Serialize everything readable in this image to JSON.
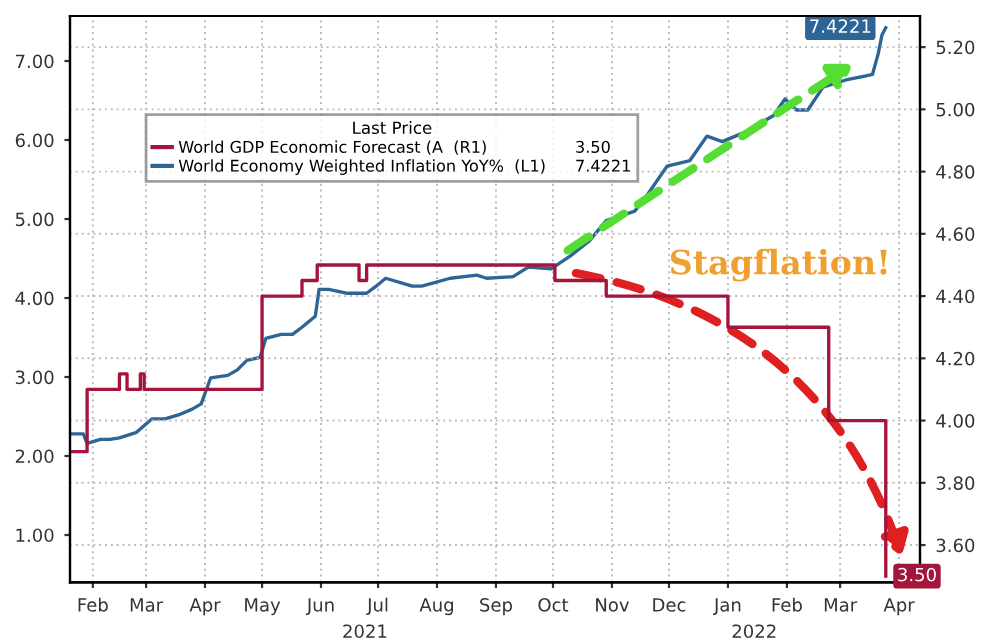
{
  "chart_data": {
    "type": "line",
    "legend_title": "Last Price",
    "legend": "top left",
    "grid": true,
    "xlim": [
      "2021-02-03",
      "2022-04-26"
    ],
    "xticks": [
      {
        "value": "2021-02-15",
        "label": "Feb"
      },
      {
        "value": "2021-03-15",
        "label": "Mar"
      },
      {
        "value": "2021-04-15",
        "label": "Apr"
      },
      {
        "value": "2021-05-15",
        "label": "May"
      },
      {
        "value": "2021-06-15",
        "label": "Jun"
      },
      {
        "value": "2021-07-15",
        "label": "Jul"
      },
      {
        "value": "2021-08-15",
        "label": "Aug"
      },
      {
        "value": "2021-09-15",
        "label": "Sep"
      },
      {
        "value": "2021-10-15",
        "label": "Oct"
      },
      {
        "value": "2021-11-15",
        "label": "Nov"
      },
      {
        "value": "2021-12-15",
        "label": "Dec"
      },
      {
        "value": "2022-01-15",
        "label": "Jan"
      },
      {
        "value": "2022-02-15",
        "label": "Feb"
      },
      {
        "value": "2022-03-15",
        "label": "Mar"
      },
      {
        "value": "2022-04-15",
        "label": "Apr"
      }
    ],
    "ylim": [
      0.4,
      7.57
    ],
    "yticks": [
      {
        "value": 1,
        "label": "1.00"
      },
      {
        "value": 2,
        "label": "2.00"
      },
      {
        "value": 3,
        "label": "3.00"
      },
      {
        "value": 4,
        "label": "4.00"
      },
      {
        "value": 5,
        "label": "5.00"
      },
      {
        "value": 6,
        "label": "6.00"
      },
      {
        "value": 7,
        "label": "7.00"
      }
    ],
    "y2lim": [
      3.48,
      5.3
    ],
    "y2ticks": [
      {
        "value": 3.6,
        "label": "3.60"
      },
      {
        "value": 3.8,
        "label": "3.80"
      },
      {
        "value": 4.0,
        "label": "4.00"
      },
      {
        "value": 4.2,
        "label": "4.20"
      },
      {
        "value": 4.4,
        "label": "4.40"
      },
      {
        "value": 4.6,
        "label": "4.60"
      },
      {
        "value": 4.8,
        "label": "4.80"
      },
      {
        "value": 5.0,
        "label": "5.00"
      },
      {
        "value": 5.2,
        "label": "5.20"
      }
    ],
    "annotations": [
      "Stagflation!",
      "2021",
      "2022"
    ],
    "series": [
      {
        "name": "World GDP Economic Forecast (A  (R1)",
        "type": "step",
        "axis": "y2",
        "color": "#a3153a",
        "x": [
          "2021-02-03",
          "2021-02-12",
          "2021-03-01",
          "2021-03-05",
          "2021-03-12",
          "2021-03-14",
          "2021-05-15",
          "2021-06-05",
          "2021-06-13",
          "2021-07-05",
          "2021-07-09",
          "2021-10-16",
          "2021-11-12",
          "2022-01-15",
          "2022-03-09",
          "2022-04-08"
        ],
        "values": [
          3.9,
          4.1,
          4.15,
          4.1,
          4.15,
          4.1,
          4.4,
          4.45,
          4.5,
          4.45,
          4.5,
          4.45,
          4.4,
          4.3,
          4.0,
          3.5
        ],
        "value_labels": [
          null,
          null,
          null,
          null,
          null,
          null,
          null,
          null,
          null,
          null,
          null,
          null,
          null,
          null,
          null,
          "3.50"
        ]
      },
      {
        "name": "World Economy Weighted Inflation YoY%  (L1)",
        "color": "#2e6597",
        "x": [
          "2021-02-03",
          "2021-02-10",
          "2021-02-12",
          "2021-02-19",
          "2021-02-24",
          "2021-03-01",
          "2021-03-10",
          "2021-03-18",
          "2021-03-25",
          "2021-04-01",
          "2021-04-08",
          "2021-04-13",
          "2021-04-18",
          "2021-04-27",
          "2021-05-02",
          "2021-05-07",
          "2021-05-14",
          "2021-05-17",
          "2021-05-25",
          "2021-05-31",
          "2021-06-05",
          "2021-06-12",
          "2021-06-14",
          "2021-06-19",
          "2021-06-29",
          "2021-07-09",
          "2021-07-14",
          "2021-07-19",
          "2021-08-02",
          "2021-08-07",
          "2021-08-22",
          "2021-09-05",
          "2021-09-10",
          "2021-09-24",
          "2021-10-02",
          "2021-10-14",
          "2021-10-24",
          "2021-11-03",
          "2021-11-12",
          "2021-11-27",
          "2021-12-04",
          "2021-12-14",
          "2021-12-26",
          "2022-01-04",
          "2022-01-12",
          "2022-01-24",
          "2022-02-08",
          "2022-02-14",
          "2022-02-20",
          "2022-02-26",
          "2022-03-06",
          "2022-03-18",
          "2022-03-28",
          "2022-04-01",
          "2022-04-04",
          "2022-04-06",
          "2022-04-08"
        ],
        "values": [
          2.28,
          2.28,
          2.16,
          2.21,
          2.21,
          2.23,
          2.3,
          2.47,
          2.47,
          2.52,
          2.59,
          2.66,
          2.99,
          3.02,
          3.09,
          3.21,
          3.25,
          3.49,
          3.54,
          3.54,
          3.63,
          3.77,
          4.11,
          4.11,
          4.06,
          4.06,
          4.15,
          4.25,
          4.15,
          4.15,
          4.25,
          4.29,
          4.25,
          4.27,
          4.39,
          4.37,
          4.53,
          4.72,
          4.98,
          5.1,
          5.32,
          5.67,
          5.74,
          6.05,
          5.98,
          6.1,
          6.31,
          6.52,
          6.38,
          6.38,
          6.67,
          6.76,
          6.81,
          6.83,
          7.09,
          7.33,
          7.4221
        ],
        "value_labels": [
          null,
          null,
          null,
          null,
          null,
          null,
          null,
          null,
          null,
          null,
          null,
          null,
          null,
          null,
          null,
          null,
          null,
          null,
          null,
          null,
          null,
          null,
          null,
          null,
          null,
          null,
          null,
          null,
          null,
          null,
          null,
          null,
          null,
          null,
          null,
          null,
          null,
          null,
          null,
          null,
          null,
          null,
          null,
          null,
          null,
          null,
          null,
          null,
          null,
          null,
          null,
          null,
          null,
          null,
          null,
          null,
          "7.4221"
        ]
      }
    ]
  }
}
